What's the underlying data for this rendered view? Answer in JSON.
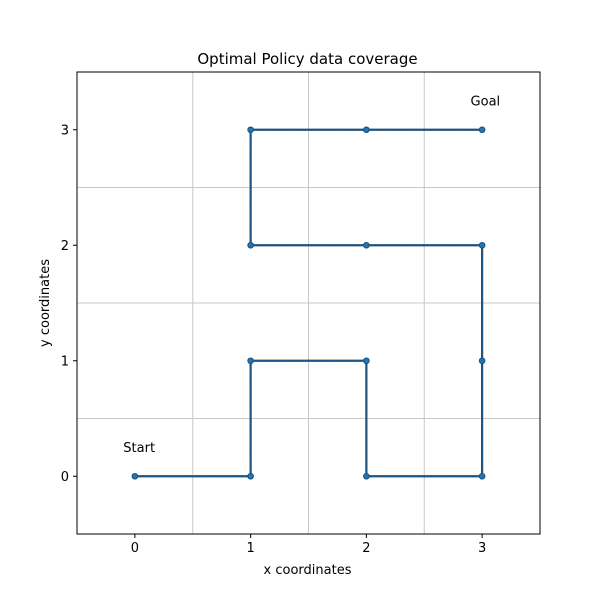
{
  "chart_data": {
    "type": "line",
    "title": "Optimal Policy data coverage",
    "xlabel": "x coordinates",
    "ylabel": "y coordinates",
    "xlim": [
      -0.5,
      3.5
    ],
    "ylim": [
      -0.5,
      3.5
    ],
    "xticks": [
      0,
      1,
      2,
      3
    ],
    "yticks": [
      0,
      1,
      2,
      3
    ],
    "grid_lines": [
      0.5,
      1.5,
      2.5
    ],
    "grid": true,
    "path": {
      "x": [
        0,
        1,
        1,
        2,
        2,
        3,
        3,
        3,
        2,
        1,
        1,
        2,
        3
      ],
      "y": [
        0,
        0,
        1,
        1,
        0,
        0,
        1,
        2,
        2,
        2,
        3,
        3,
        3
      ],
      "color": "#1f4e79",
      "dot_color": "#1f77b4"
    },
    "annotations": [
      {
        "text": "Start",
        "x": -0.1,
        "y": 0.25
      },
      {
        "text": "Goal",
        "x": 2.9,
        "y": 3.25
      }
    ],
    "colors": {
      "grid": "#c8c8c8",
      "axes": "#000000"
    }
  }
}
